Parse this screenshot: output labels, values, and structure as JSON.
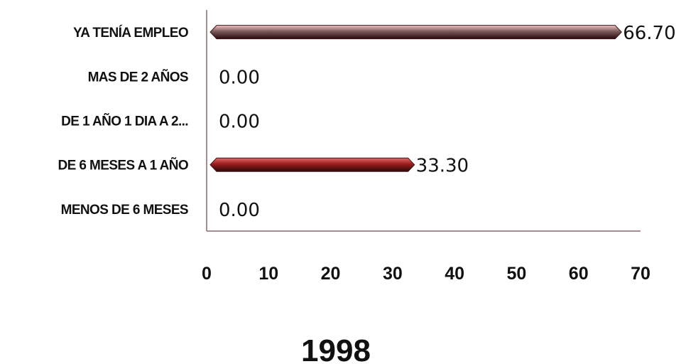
{
  "chart_data": {
    "type": "bar",
    "orientation": "horizontal",
    "title": "1998",
    "categories": [
      "MENOS DE 6 MESES",
      "DE 6 MESES A 1 AÑO",
      "DE 1 AÑO 1 DIA A 2...",
      "MAS DE 2 AÑOS",
      "YA TENÍA EMPLEO"
    ],
    "values": [
      0.0,
      33.3,
      0.0,
      0.0,
      66.7
    ],
    "value_labels": [
      "0.00",
      "33.30",
      "0.00",
      "0.00",
      "66.70"
    ],
    "bar_colors": [
      "#9c1d1d",
      "#9c1d1d",
      "#9c1d1d",
      "#9c1d1d",
      "#7a5a5a"
    ],
    "bar_highlight_colors": [
      "#e06a6a",
      "#e06a6a",
      "#e06a6a",
      "#e06a6a",
      "#f4c6c6"
    ],
    "xlim": [
      0,
      70
    ],
    "x_ticks": [
      "0",
      "10",
      "20",
      "30",
      "40",
      "50",
      "60",
      "70"
    ],
    "xlabel": "",
    "ylabel": "",
    "grid": false,
    "legend": "none",
    "axis_color": "#8a6a6a"
  }
}
